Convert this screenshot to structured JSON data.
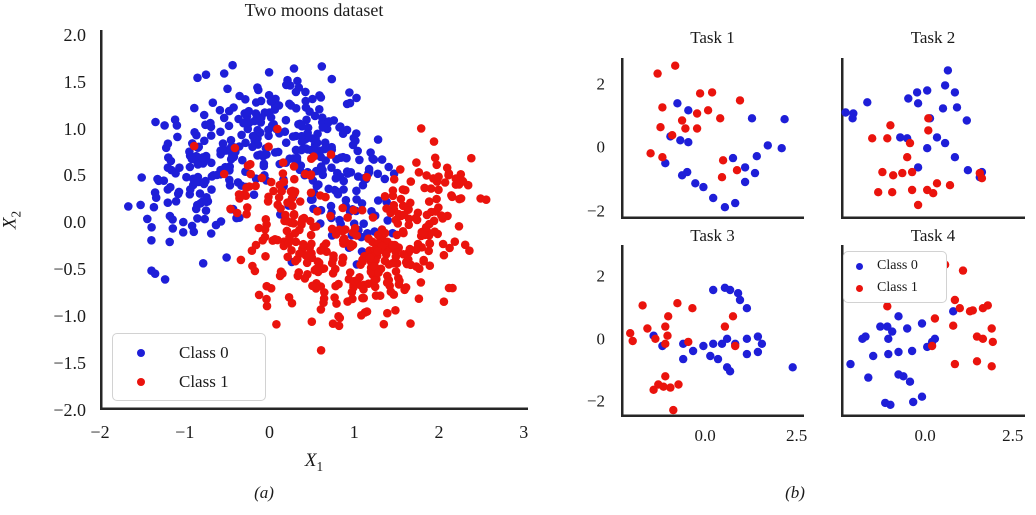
{
  "colors": {
    "class0": "#1e1ed8",
    "class1": "#ea130d",
    "spine": "#262626",
    "text": "#1b1b1b",
    "legend_border": "#d2d2d2"
  },
  "captions": {
    "a": "(a)",
    "b": "(b)"
  },
  "chart_data": [
    {
      "id": "main",
      "type": "scatter",
      "title": "Two moons dataset",
      "xlabel": {
        "base": "X",
        "sub": "1"
      },
      "ylabel": {
        "base": "X",
        "sub": "2"
      },
      "xlim": [
        -2.0,
        3.05
      ],
      "ylim": [
        -2.0,
        2.05
      ],
      "grid": false,
      "xticks": {
        "values": [
          -2,
          -1,
          0,
          1,
          2,
          3
        ],
        "labels": [
          "−2",
          "−1",
          "0",
          "1",
          "2",
          "3"
        ]
      },
      "yticks": {
        "values": [
          2.0,
          1.5,
          1.0,
          0.5,
          0.0,
          -0.5,
          -1.0,
          -1.5,
          -2.0
        ],
        "labels": [
          "2.0",
          "1.5",
          "1.0",
          "0.5",
          "0.0",
          "−0.5",
          "−1.0",
          "−1.5",
          "−2.0"
        ]
      },
      "legend": {
        "position": "lower-left",
        "items": [
          "Class 0",
          "Class 1"
        ]
      },
      "marker_radius": 4.3,
      "series": [
        {
          "name": "Class 0",
          "class_key": "class0",
          "generator": {
            "type": "two_moons_upper",
            "n": 375,
            "noise": 0.3,
            "seed": 101
          }
        },
        {
          "name": "Class 1",
          "class_key": "class1",
          "generator": {
            "type": "two_moons_lower",
            "n": 375,
            "noise": 0.3,
            "seed": 202
          }
        }
      ]
    },
    {
      "id": "t1",
      "type": "scatter",
      "title": "Task 1",
      "xlim": [
        -2.3,
        2.7
      ],
      "ylim": [
        -2.25,
        2.8
      ],
      "grid": false,
      "yticks": {
        "values": [
          2,
          0,
          -2
        ],
        "labels": [
          "2",
          "0",
          "−2"
        ]
      },
      "marker_radius": 4.2,
      "series": [
        {
          "name": "Class 0",
          "class_key": "class0",
          "points": [
            [
              -0.76,
              1.38
            ],
            [
              -0.46,
              1.16
            ],
            [
              1.28,
              0.91
            ],
            [
              2.17,
              0.88
            ],
            [
              -0.95,
              0.34
            ],
            [
              -0.68,
              0.22
            ],
            [
              -0.46,
              0.16
            ],
            [
              -1.09,
              -0.5
            ],
            [
              1.71,
              0.06
            ],
            [
              2.09,
              -0.03
            ],
            [
              1.41,
              -0.28
            ],
            [
              0.76,
              -0.34
            ],
            [
              1.09,
              -0.63
            ],
            [
              1.36,
              -0.81
            ],
            [
              1.09,
              -1.09
            ],
            [
              -0.49,
              -0.78
            ],
            [
              -0.63,
              -0.88
            ],
            [
              -0.27,
              -1.13
            ],
            [
              -0.05,
              -1.25
            ],
            [
              0.22,
              -1.59
            ],
            [
              0.54,
              -1.88
            ],
            [
              0.82,
              -1.75
            ]
          ]
        },
        {
          "name": "Class 1",
          "class_key": "class1",
          "points": [
            [
              -1.3,
              2.31
            ],
            [
              -0.82,
              2.56
            ],
            [
              -1.17,
              1.25
            ],
            [
              -0.14,
              1.69
            ],
            [
              0.19,
              1.72
            ],
            [
              -0.22,
              1.06
            ],
            [
              0.08,
              1.16
            ],
            [
              0.95,
              1.47
            ],
            [
              0.41,
              0.91
            ],
            [
              -1.22,
              0.63
            ],
            [
              -0.63,
              0.84
            ],
            [
              -0.54,
              0.59
            ],
            [
              -0.22,
              0.59
            ],
            [
              -0.9,
              0.38
            ],
            [
              -1.49,
              -0.19
            ],
            [
              -1.17,
              -0.31
            ],
            [
              0.49,
              -0.41
            ],
            [
              0.87,
              -0.72
            ],
            [
              0.46,
              -0.94
            ]
          ]
        }
      ]
    },
    {
      "id": "t2",
      "type": "scatter",
      "title": "Task 2",
      "xlim": [
        -2.4,
        2.85
      ],
      "ylim": [
        -2.25,
        2.8
      ],
      "grid": false,
      "marker_radius": 4.2,
      "series": [
        {
          "name": "Class 0",
          "class_key": "class0",
          "points": [
            [
              0.65,
              2.41
            ],
            [
              0.57,
              1.94
            ],
            [
              0.06,
              1.78
            ],
            [
              -0.23,
              1.72
            ],
            [
              -0.48,
              1.53
            ],
            [
              0.85,
              1.72
            ],
            [
              -1.65,
              1.41
            ],
            [
              -2.27,
              1.09
            ],
            [
              -2.05,
              1.06
            ],
            [
              -2.07,
              0.91
            ],
            [
              0.91,
              1.25
            ],
            [
              0.51,
              1.22
            ],
            [
              1.19,
              0.84
            ],
            [
              -0.2,
              1.38
            ],
            [
              0.14,
              0.91
            ],
            [
              0.34,
              0.31
            ],
            [
              -0.71,
              0.31
            ],
            [
              -0.51,
              0.28
            ],
            [
              0.57,
              0.13
            ],
            [
              0.06,
              -0.03
            ],
            [
              0.85,
              -0.31
            ],
            [
              1.22,
              -0.72
            ],
            [
              -0.2,
              -0.63
            ],
            [
              1.62,
              -0.78
            ],
            [
              1.56,
              -0.94
            ]
          ]
        },
        {
          "name": "Class 1",
          "class_key": "class1",
          "points": [
            [
              0.09,
              0.91
            ],
            [
              -0.99,
              0.69
            ],
            [
              0.09,
              0.53
            ],
            [
              -1.51,
              0.28
            ],
            [
              -1.08,
              0.28
            ],
            [
              -0.43,
              0.13
            ],
            [
              -0.51,
              -0.31
            ],
            [
              -1.22,
              -0.78
            ],
            [
              -0.91,
              -0.88
            ],
            [
              -0.65,
              -0.81
            ],
            [
              -0.37,
              -0.78
            ],
            [
              1.56,
              -0.81
            ],
            [
              1.62,
              -0.97
            ],
            [
              0.06,
              -1.34
            ],
            [
              0.34,
              -1.13
            ],
            [
              -1.34,
              -1.41
            ],
            [
              -0.94,
              -1.41
            ],
            [
              -0.37,
              -1.34
            ],
            [
              0.23,
              -1.44
            ],
            [
              0.71,
              -1.19
            ],
            [
              -0.2,
              -1.81
            ]
          ]
        }
      ]
    },
    {
      "id": "t3",
      "type": "scatter",
      "title": "Task 3",
      "xlim": [
        -2.3,
        2.7
      ],
      "ylim": [
        -2.5,
        3.0
      ],
      "grid": false,
      "xticks": {
        "values": [
          0.0,
          2.5
        ],
        "labels": [
          "0.0",
          "2.5"
        ]
      },
      "yticks": {
        "values": [
          2,
          0,
          -2
        ],
        "labels": [
          "2",
          "0",
          "−2"
        ]
      },
      "marker_radius": 4.2,
      "series": [
        {
          "name": "Class 0",
          "class_key": "class0",
          "points": [
            [
              0.22,
              1.56
            ],
            [
              0.54,
              1.63
            ],
            [
              0.68,
              1.56
            ],
            [
              0.9,
              1.46
            ],
            [
              0.95,
              1.24
            ],
            [
              1.14,
              0.98
            ],
            [
              -1.41,
              0.1
            ],
            [
              -1.17,
              -0.23
            ],
            [
              -0.6,
              -0.16
            ],
            [
              -0.33,
              -0.39
            ],
            [
              -0.05,
              -0.23
            ],
            [
              0.22,
              -0.16
            ],
            [
              0.46,
              -0.16
            ],
            [
              0.6,
              0.0
            ],
            [
              0.82,
              -0.16
            ],
            [
              1.14,
              0.0
            ],
            [
              1.44,
              0.07
            ],
            [
              1.55,
              -0.16
            ],
            [
              1.44,
              -0.42
            ],
            [
              1.14,
              -0.49
            ],
            [
              0.14,
              -0.55
            ],
            [
              0.35,
              -0.65
            ],
            [
              0.6,
              -0.91
            ],
            [
              0.68,
              -1.04
            ],
            [
              2.39,
              -0.91
            ],
            [
              -0.6,
              -0.65
            ]
          ]
        },
        {
          "name": "Class 1",
          "class_key": "class1",
          "points": [
            [
              -1.71,
              1.07
            ],
            [
              -0.76,
              1.14
            ],
            [
              -0.35,
              0.98
            ],
            [
              0.76,
              0.72
            ],
            [
              0.54,
              0.39
            ],
            [
              0.82,
              -0.23
            ],
            [
              -1.58,
              0.33
            ],
            [
              -1.09,
              0.39
            ],
            [
              -1.01,
              0.72
            ],
            [
              -1.03,
              0.1
            ],
            [
              -1.98,
              -0.07
            ],
            [
              -1.36,
              0.0
            ],
            [
              -1.09,
              -0.16
            ],
            [
              -2.05,
              0.18
            ],
            [
              -0.46,
              -0.1
            ],
            [
              -1.09,
              -1.2
            ],
            [
              -1.28,
              -1.46
            ],
            [
              -1.41,
              -1.63
            ],
            [
              -1.14,
              -1.53
            ],
            [
              -0.95,
              -1.56
            ],
            [
              -0.73,
              -1.46
            ],
            [
              -0.87,
              -2.28
            ]
          ]
        }
      ]
    },
    {
      "id": "t4",
      "type": "scatter",
      "title": "Task 4",
      "xlim": [
        -2.4,
        2.85
      ],
      "ylim": [
        -2.5,
        3.0
      ],
      "grid": false,
      "xticks": {
        "values": [
          0.0,
          2.5
        ],
        "labels": [
          "0.0",
          "2.5"
        ]
      },
      "legend": {
        "position": "upper-left",
        "items": [
          "Class 0",
          "Class 1"
        ]
      },
      "marker_radius": 4.2,
      "series": [
        {
          "name": "Class 0",
          "class_key": "class0",
          "points": [
            [
              0.8,
              0.88
            ],
            [
              -0.76,
              0.72
            ],
            [
              -1.28,
              0.39
            ],
            [
              -1.08,
              0.39
            ],
            [
              -0.94,
              0.23
            ],
            [
              -1.7,
              0.07
            ],
            [
              -1.05,
              0.0
            ],
            [
              -1.79,
              0.0
            ],
            [
              -0.51,
              0.33
            ],
            [
              -0.09,
              0.49
            ],
            [
              -1.48,
              -0.55
            ],
            [
              -1.05,
              -0.49
            ],
            [
              -0.76,
              -0.42
            ],
            [
              -0.37,
              -0.39
            ],
            [
              0.06,
              -0.26
            ],
            [
              0.28,
              0.0
            ],
            [
              -2.13,
              -0.81
            ],
            [
              -1.62,
              -1.24
            ],
            [
              -0.76,
              -1.14
            ],
            [
              -0.62,
              -1.2
            ],
            [
              -0.43,
              -1.37
            ],
            [
              -0.09,
              -1.85
            ],
            [
              -1.14,
              -2.05
            ],
            [
              -0.99,
              -2.11
            ],
            [
              -0.34,
              -2.02
            ],
            [
              0.2,
              -0.1
            ]
          ]
        },
        {
          "name": "Class 1",
          "class_key": "class1",
          "points": [
            [
              0.57,
              2.37
            ],
            [
              1.08,
              2.18
            ],
            [
              0.85,
              1.24
            ],
            [
              0.99,
              0.98
            ],
            [
              1.36,
              0.91
            ],
            [
              1.28,
              0.88
            ],
            [
              1.65,
              0.98
            ],
            [
              1.79,
              1.07
            ],
            [
              0.28,
              0.65
            ],
            [
              0.8,
              0.42
            ],
            [
              1.9,
              0.33
            ],
            [
              1.48,
              0.07
            ],
            [
              1.65,
              0.0
            ],
            [
              1.93,
              -0.1
            ],
            [
              0.2,
              -0.23
            ],
            [
              0.85,
              -0.81
            ],
            [
              1.48,
              -0.72
            ],
            [
              1.9,
              -0.88
            ],
            [
              -1.08,
              1.04
            ],
            [
              0.09,
              1.4
            ]
          ]
        }
      ]
    }
  ]
}
